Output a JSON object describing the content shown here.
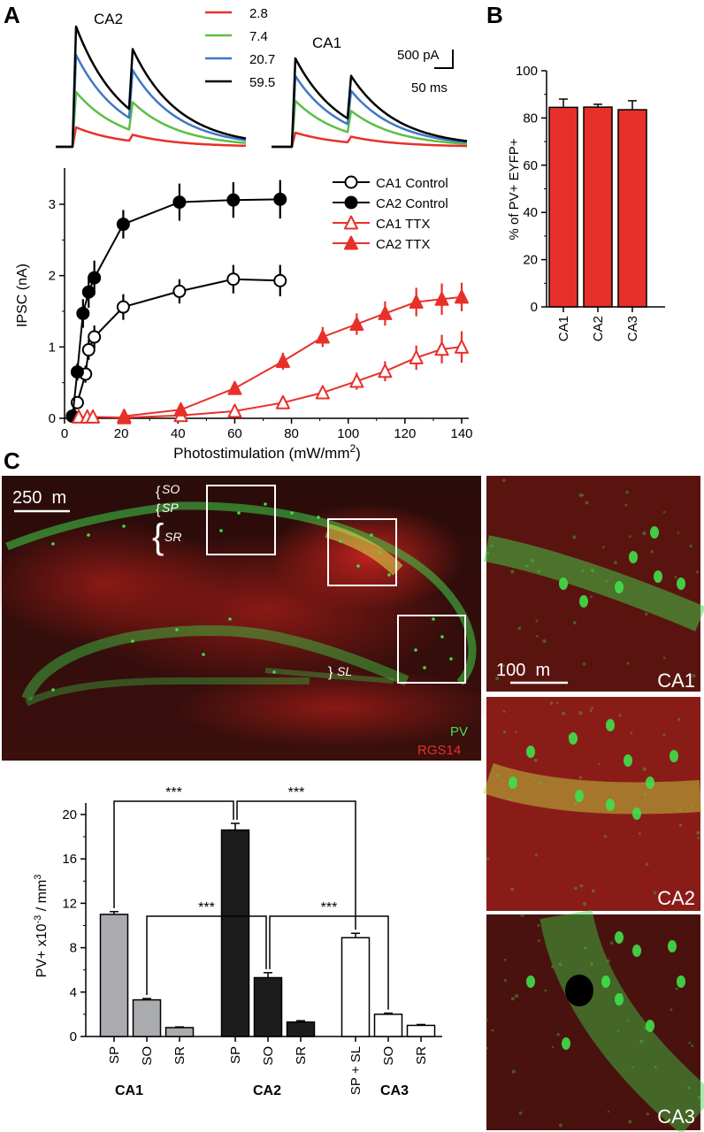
{
  "panels": {
    "a": "A",
    "b": "B",
    "c": "C"
  },
  "traces": {
    "ca2_label": "CA2",
    "ca1_label": "CA1",
    "legend": [
      {
        "label": "2.8",
        "color": "#e8302a"
      },
      {
        "label": "7.4",
        "color": "#5cbf45"
      },
      {
        "label": "20.7",
        "color": "#3f78c6"
      },
      {
        "label": "59.5",
        "color": "#000000"
      }
    ],
    "scale_current": "500 pA",
    "scale_time": "50 ms",
    "peaks": {
      "ca2": {
        "first": [
          0.55,
          1.55,
          2.6,
          3.4
        ],
        "second": [
          0.3,
          1.35,
          2.35,
          2.95
        ]
      },
      "ca1": {
        "first": [
          0.4,
          1.3,
          2.0,
          2.5
        ],
        "second": [
          0.28,
          1.05,
          1.65,
          2.1
        ]
      }
    }
  },
  "microscopy": {
    "scale_main": "250  m",
    "layers": [
      "SO",
      "SP",
      "SR",
      "SL"
    ],
    "stain_pv": "PV",
    "stain_rgs14": "RGS14",
    "scale_inset": "100  m",
    "inset_labels": [
      "CA1",
      "CA2",
      "CA3"
    ],
    "colors": {
      "pv": "#3fe04a",
      "rgs14": "#e0322a"
    }
  },
  "chart_data": [
    {
      "type": "line",
      "id": "ipsc",
      "xlabel": "Photostimulation (mW/mm",
      "xlabel_sup": "2",
      "xlabel_close": ")",
      "ylabel": "IPSC (nA)",
      "xlim": [
        0,
        140
      ],
      "ylim": [
        0,
        3.4
      ],
      "xticks": [
        0,
        20,
        40,
        60,
        80,
        100,
        120,
        140
      ],
      "yticks": [
        0,
        1,
        2,
        3
      ],
      "legend": "top-right",
      "series": [
        {
          "name": "CA1 Control",
          "color": "#000000",
          "marker": "circle-open",
          "x": [
            2.8,
            4.5,
            7.4,
            8.5,
            10.5,
            20.7,
            40.5,
            59.5,
            76
          ],
          "y": [
            0.03,
            0.22,
            0.62,
            0.96,
            1.14,
            1.56,
            1.78,
            1.95,
            1.93
          ],
          "err": [
            0.04,
            0.08,
            0.12,
            0.14,
            0.16,
            0.18,
            0.17,
            0.2,
            0.22
          ]
        },
        {
          "name": "CA2 Control",
          "color": "#000000",
          "marker": "circle-filled",
          "x": [
            2.8,
            4.5,
            6.5,
            8.5,
            10.5,
            20.7,
            40.5,
            59.5,
            76
          ],
          "y": [
            0.03,
            0.65,
            1.47,
            1.77,
            1.97,
            2.72,
            3.03,
            3.06,
            3.07
          ],
          "err": [
            0.03,
            0.12,
            0.2,
            0.22,
            0.24,
            0.2,
            0.26,
            0.25,
            0.27
          ]
        },
        {
          "name": "CA1 TTX",
          "color": "#e8302a",
          "marker": "triangle-open",
          "x": [
            5,
            8,
            10,
            21,
            41,
            60,
            77,
            91,
            103,
            113,
            124,
            133,
            140
          ],
          "y": [
            0.02,
            0.02,
            0.02,
            0.01,
            0.04,
            0.1,
            0.22,
            0.36,
            0.52,
            0.66,
            0.85,
            0.97,
            1.0
          ],
          "err": [
            0.03,
            0.03,
            0.03,
            0.03,
            0.04,
            0.06,
            0.07,
            0.08,
            0.12,
            0.14,
            0.17,
            0.2,
            0.22
          ]
        },
        {
          "name": "CA2 TTX",
          "color": "#e8302a",
          "marker": "triangle-filled",
          "x": [
            21,
            41,
            60,
            77,
            91,
            103,
            113,
            124,
            133,
            140
          ],
          "y": [
            0.03,
            0.12,
            0.42,
            0.8,
            1.14,
            1.32,
            1.47,
            1.63,
            1.67,
            1.7
          ],
          "err": [
            0.03,
            0.05,
            0.08,
            0.12,
            0.14,
            0.15,
            0.17,
            0.2,
            0.22,
            0.2
          ]
        }
      ]
    },
    {
      "type": "bar",
      "id": "pv-eyfp",
      "ylabel": "% of PV+ EYFP+",
      "categories": [
        "CA1",
        "CA2",
        "CA3"
      ],
      "values": [
        84.5,
        84.6,
        83.5
      ],
      "err": [
        3.5,
        1.2,
        3.8
      ],
      "ylim": [
        0,
        100
      ],
      "yticks": [
        0,
        20,
        40,
        60,
        80,
        100
      ],
      "color": "#e8302a"
    },
    {
      "type": "bar",
      "id": "pv-density",
      "ylabel": "PV+ x10",
      "ylabel_sup": "-3",
      "ylabel_tail": " / mm",
      "ylabel_sup2": "3",
      "ylim": [
        0,
        21
      ],
      "yticks": [
        0,
        4,
        8,
        12,
        16,
        20
      ],
      "groups": [
        "CA1",
        "CA2",
        "CA3"
      ],
      "significance": "***",
      "bars": [
        {
          "group": "CA1",
          "label": "SP",
          "value": 11.0,
          "err": 0.25,
          "color": "#a9abae"
        },
        {
          "group": "CA1",
          "label": "SO",
          "value": 3.3,
          "err": 0.12,
          "color": "#a9abae"
        },
        {
          "group": "CA1",
          "label": "SR",
          "value": 0.8,
          "err": 0.06,
          "color": "#a9abae"
        },
        {
          "group": "CA2",
          "label": "SP",
          "value": 18.6,
          "err": 0.6,
          "color": "#1c1c1c"
        },
        {
          "group": "CA2",
          "label": "SO",
          "value": 5.3,
          "err": 0.45,
          "color": "#1c1c1c"
        },
        {
          "group": "CA2",
          "label": "SR",
          "value": 1.3,
          "err": 0.12,
          "color": "#1c1c1c"
        },
        {
          "group": "CA3",
          "label": "SP + SL",
          "value": 8.9,
          "err": 0.4,
          "color": "#ffffff"
        },
        {
          "group": "CA3",
          "label": "SO",
          "value": 2.0,
          "err": 0.1,
          "color": "#ffffff"
        },
        {
          "group": "CA3",
          "label": "SR",
          "value": 1.0,
          "err": 0.08,
          "color": "#ffffff"
        }
      ]
    }
  ]
}
